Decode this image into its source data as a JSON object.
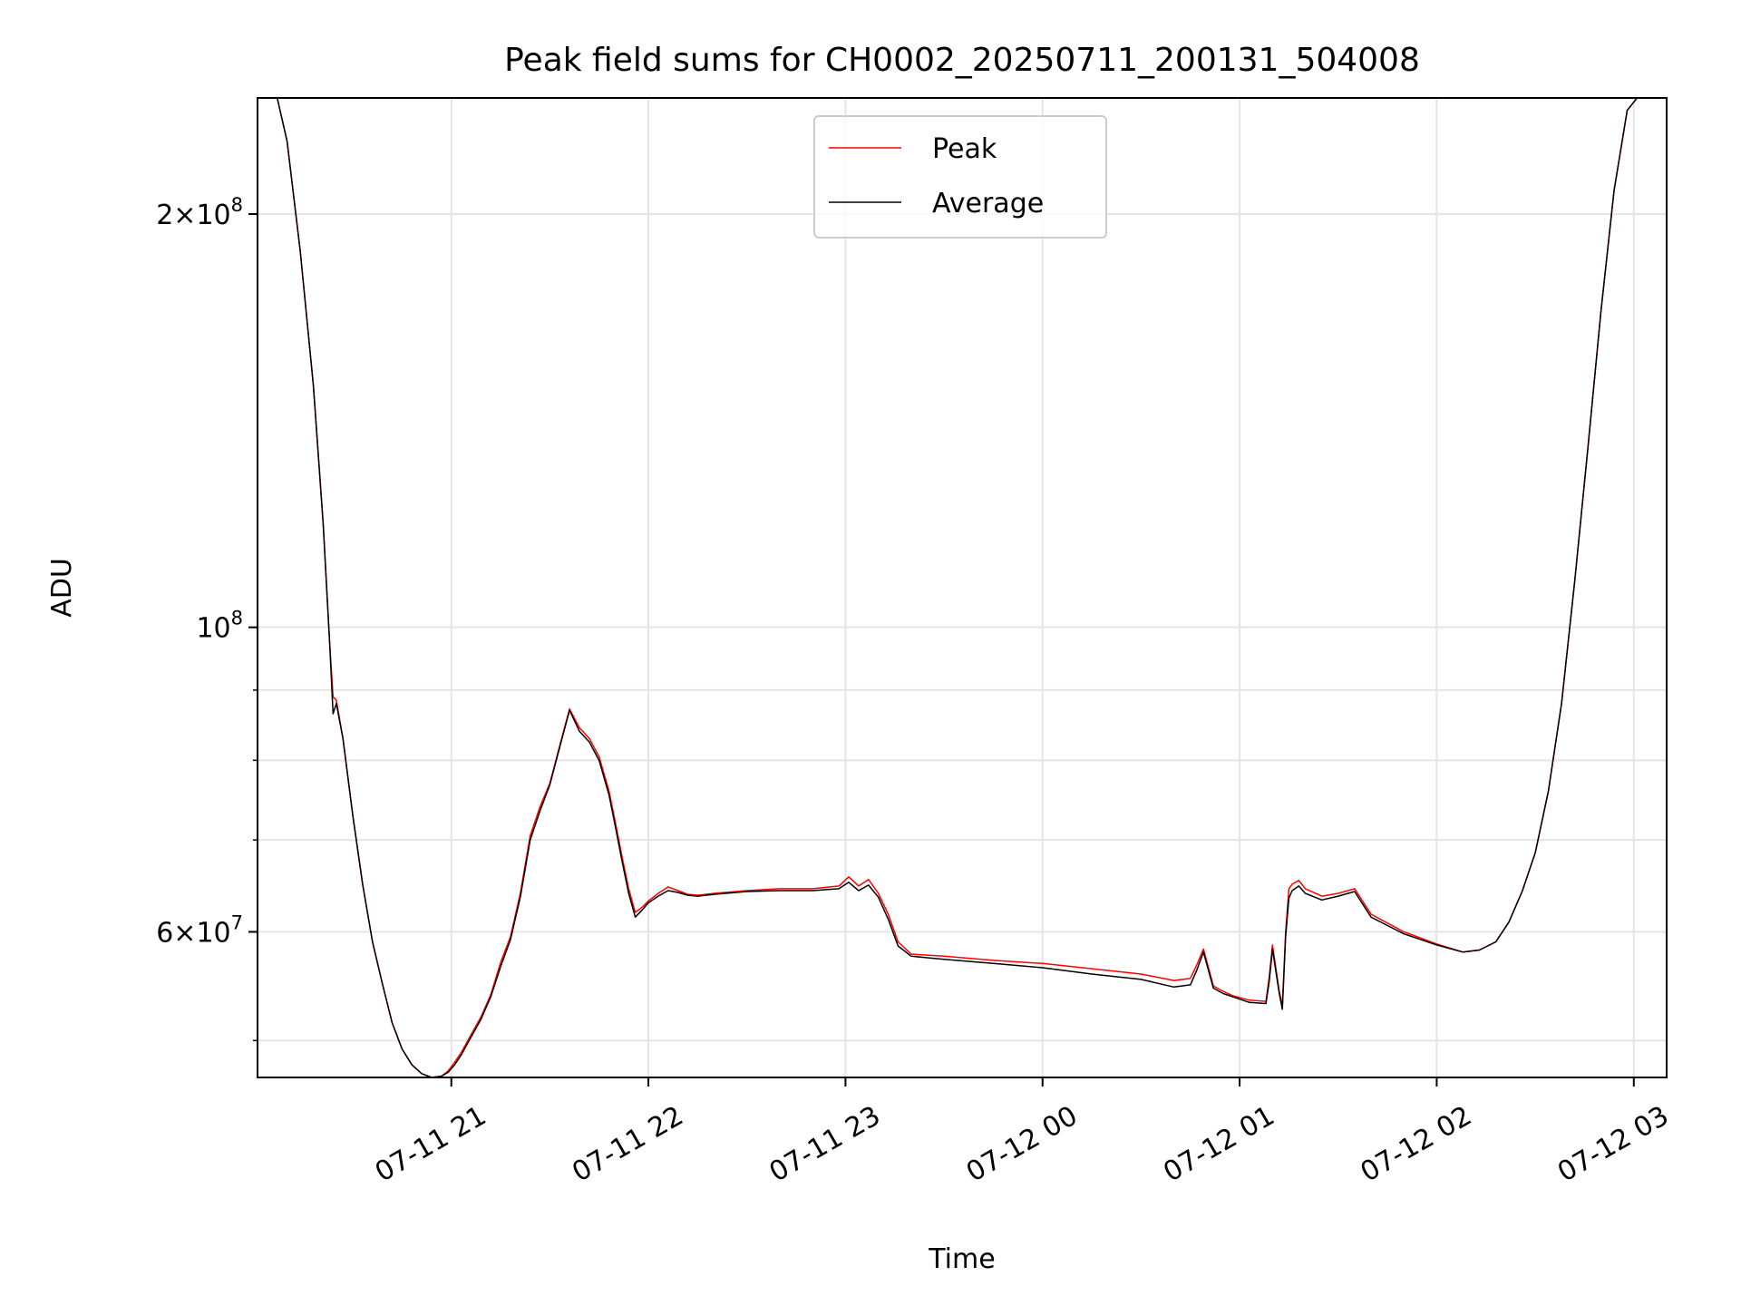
{
  "chart_data": {
    "type": "line",
    "title": "Peak field sums for CH0002_20250711_200131_504008",
    "xlabel": "Time",
    "ylabel": "ADU",
    "yscale": "log",
    "ylim": [
      47000000,
      243000000
    ],
    "xlim": [
      "2025-07-11 20:01",
      "2025-07-12 03:10"
    ],
    "grid": true,
    "legend_position": "upper center",
    "x_ticks": [
      {
        "value": "2025-07-11 21:00",
        "label": "07-11 21"
      },
      {
        "value": "2025-07-11 22:00",
        "label": "07-11 22"
      },
      {
        "value": "2025-07-11 23:00",
        "label": "07-11 23"
      },
      {
        "value": "2025-07-12 00:00",
        "label": "07-12 00"
      },
      {
        "value": "2025-07-12 01:00",
        "label": "07-12 01"
      },
      {
        "value": "2025-07-12 02:00",
        "label": "07-12 02"
      },
      {
        "value": "2025-07-12 03:00",
        "label": "07-12 03"
      }
    ],
    "y_ticks": [
      {
        "value": 200000000,
        "mantissa": "2",
        "exponent": "8"
      },
      {
        "value": 100000000,
        "mantissa": "",
        "exponent": "8"
      },
      {
        "value": 60000000,
        "mantissa": "6",
        "exponent": "7"
      }
    ],
    "y_minor_ticks": [
      50000000,
      70000000,
      80000000,
      90000000
    ],
    "series": [
      {
        "name": "Peak",
        "color": "#ff0000",
        "x": [
          "2025-07-11 20:07",
          "2025-07-11 20:10",
          "2025-07-11 20:14",
          "2025-07-11 20:18",
          "2025-07-11 20:21",
          "2025-07-11 20:23",
          "2025-07-11 20:24",
          "2025-07-11 20:25",
          "2025-07-11 20:27",
          "2025-07-11 20:30",
          "2025-07-11 20:33",
          "2025-07-11 20:36",
          "2025-07-11 20:39",
          "2025-07-11 20:42",
          "2025-07-11 20:45",
          "2025-07-11 20:48",
          "2025-07-11 20:51",
          "2025-07-11 20:54",
          "2025-07-11 20:57",
          "2025-07-11 20:59",
          "2025-07-11 21:01",
          "2025-07-11 21:03",
          "2025-07-11 21:06",
          "2025-07-11 21:09",
          "2025-07-11 21:12",
          "2025-07-11 21:15",
          "2025-07-11 21:18",
          "2025-07-11 21:21",
          "2025-07-11 21:24",
          "2025-07-11 21:27",
          "2025-07-11 21:30",
          "2025-07-11 21:33",
          "2025-07-11 21:36",
          "2025-07-11 21:39",
          "2025-07-11 21:42",
          "2025-07-11 21:45",
          "2025-07-11 21:48",
          "2025-07-11 21:50",
          "2025-07-11 21:52",
          "2025-07-11 21:54",
          "2025-07-11 21:56",
          "2025-07-11 21:58",
          "2025-07-11 22:00",
          "2025-07-11 22:03",
          "2025-07-11 22:06",
          "2025-07-11 22:09",
          "2025-07-11 22:12",
          "2025-07-11 22:15",
          "2025-07-11 22:20",
          "2025-07-11 22:30",
          "2025-07-11 22:40",
          "2025-07-11 22:50",
          "2025-07-11 22:58",
          "2025-07-11 23:01",
          "2025-07-11 23:04",
          "2025-07-11 23:07",
          "2025-07-11 23:10",
          "2025-07-11 23:13",
          "2025-07-11 23:16",
          "2025-07-11 23:20",
          "2025-07-11 23:30",
          "2025-07-11 23:45",
          "2025-07-12 00:00",
          "2025-07-12 00:15",
          "2025-07-12 00:30",
          "2025-07-12 00:40",
          "2025-07-12 00:45",
          "2025-07-12 00:47",
          "2025-07-12 00:49",
          "2025-07-12 00:52",
          "2025-07-12 00:55",
          "2025-07-12 00:58",
          "2025-07-12 01:03",
          "2025-07-12 01:08",
          "2025-07-12 01:09",
          "2025-07-12 01:10",
          "2025-07-12 01:12",
          "2025-07-12 01:13",
          "2025-07-12 01:14",
          "2025-07-12 01:15",
          "2025-07-12 01:16",
          "2025-07-12 01:18",
          "2025-07-12 01:20",
          "2025-07-12 01:25",
          "2025-07-12 01:30",
          "2025-07-12 01:35",
          "2025-07-12 01:40",
          "2025-07-12 01:50",
          "2025-07-12 02:00",
          "2025-07-12 02:08",
          "2025-07-12 02:13",
          "2025-07-12 02:18",
          "2025-07-12 02:22",
          "2025-07-12 02:26",
          "2025-07-12 02:30",
          "2025-07-12 02:34",
          "2025-07-12 02:38",
          "2025-07-12 02:42",
          "2025-07-12 02:46",
          "2025-07-12 02:50",
          "2025-07-12 02:54",
          "2025-07-12 02:58",
          "2025-07-12 03:01"
        ],
        "values": [
          243000000,
          226000000,
          188000000,
          150000000,
          119000000,
          97000000,
          89000000,
          88500000,
          83000000,
          73000000,
          65000000,
          59000000,
          55000000,
          51500000,
          49300000,
          48000000,
          47300000,
          47000000,
          47100000,
          47500000,
          48200000,
          49000000,
          50500000,
          52000000,
          54000000,
          57000000,
          59500000,
          64000000,
          70500000,
          74000000,
          77000000,
          82000000,
          87200000,
          84500000,
          83000000,
          80500000,
          76000000,
          72000000,
          68000000,
          64500000,
          62000000,
          62500000,
          63200000,
          64000000,
          64700000,
          64300000,
          63900000,
          63800000,
          64000000,
          64300000,
          64500000,
          64500000,
          64800000,
          65800000,
          64800000,
          65500000,
          64000000,
          61800000,
          59000000,
          57800000,
          57600000,
          57200000,
          56900000,
          56400000,
          55900000,
          55300000,
          55500000,
          56800000,
          58300000,
          54800000,
          54300000,
          53900000,
          53500000,
          53400000,
          55600000,
          58700000,
          54400000,
          53000000,
          60000000,
          64500000,
          65000000,
          65400000,
          64500000,
          63700000,
          64000000,
          64500000,
          61800000,
          60000000,
          58800000,
          58000000,
          58200000,
          59000000,
          61000000,
          64200000,
          68500000,
          76000000,
          88000000,
          108000000,
          135000000,
          170000000,
          208000000,
          238000000,
          243000000
        ]
      },
      {
        "name": "Average",
        "color": "#000000",
        "x": [
          "2025-07-11 20:07",
          "2025-07-11 20:10",
          "2025-07-11 20:14",
          "2025-07-11 20:18",
          "2025-07-11 20:21",
          "2025-07-11 20:23",
          "2025-07-11 20:24",
          "2025-07-11 20:25",
          "2025-07-11 20:27",
          "2025-07-11 20:30",
          "2025-07-11 20:33",
          "2025-07-11 20:36",
          "2025-07-11 20:39",
          "2025-07-11 20:42",
          "2025-07-11 20:45",
          "2025-07-11 20:48",
          "2025-07-11 20:51",
          "2025-07-11 20:54",
          "2025-07-11 20:57",
          "2025-07-11 20:59",
          "2025-07-11 21:01",
          "2025-07-11 21:03",
          "2025-07-11 21:06",
          "2025-07-11 21:09",
          "2025-07-11 21:12",
          "2025-07-11 21:15",
          "2025-07-11 21:18",
          "2025-07-11 21:21",
          "2025-07-11 21:24",
          "2025-07-11 21:27",
          "2025-07-11 21:30",
          "2025-07-11 21:33",
          "2025-07-11 21:36",
          "2025-07-11 21:39",
          "2025-07-11 21:42",
          "2025-07-11 21:45",
          "2025-07-11 21:48",
          "2025-07-11 21:50",
          "2025-07-11 21:52",
          "2025-07-11 21:54",
          "2025-07-11 21:56",
          "2025-07-11 21:58",
          "2025-07-11 22:00",
          "2025-07-11 22:03",
          "2025-07-11 22:06",
          "2025-07-11 22:09",
          "2025-07-11 22:12",
          "2025-07-11 22:15",
          "2025-07-11 22:20",
          "2025-07-11 22:30",
          "2025-07-11 22:40",
          "2025-07-11 22:50",
          "2025-07-11 22:58",
          "2025-07-11 23:01",
          "2025-07-11 23:04",
          "2025-07-11 23:07",
          "2025-07-11 23:10",
          "2025-07-11 23:13",
          "2025-07-11 23:16",
          "2025-07-11 23:20",
          "2025-07-11 23:30",
          "2025-07-11 23:45",
          "2025-07-12 00:00",
          "2025-07-12 00:15",
          "2025-07-12 00:30",
          "2025-07-12 00:40",
          "2025-07-12 00:45",
          "2025-07-12 00:47",
          "2025-07-12 00:49",
          "2025-07-12 00:52",
          "2025-07-12 00:55",
          "2025-07-12 00:58",
          "2025-07-12 01:03",
          "2025-07-12 01:08",
          "2025-07-12 01:09",
          "2025-07-12 01:10",
          "2025-07-12 01:12",
          "2025-07-12 01:13",
          "2025-07-12 01:14",
          "2025-07-12 01:15",
          "2025-07-12 01:16",
          "2025-07-12 01:18",
          "2025-07-12 01:20",
          "2025-07-12 01:25",
          "2025-07-12 01:30",
          "2025-07-12 01:35",
          "2025-07-12 01:40",
          "2025-07-12 01:50",
          "2025-07-12 02:00",
          "2025-07-12 02:08",
          "2025-07-12 02:13",
          "2025-07-12 02:18",
          "2025-07-12 02:22",
          "2025-07-12 02:26",
          "2025-07-12 02:30",
          "2025-07-12 02:34",
          "2025-07-12 02:38",
          "2025-07-12 02:42",
          "2025-07-12 02:46",
          "2025-07-12 02:50",
          "2025-07-12 02:54",
          "2025-07-12 02:58",
          "2025-07-12 03:01"
        ],
        "values": [
          243000000,
          226000000,
          188000000,
          150000000,
          119000000,
          97000000,
          86500000,
          88000000,
          83000000,
          73000000,
          65000000,
          59000000,
          55000000,
          51500000,
          49300000,
          48000000,
          47300000,
          47000000,
          47100000,
          47400000,
          48000000,
          48800000,
          50300000,
          51800000,
          53800000,
          56600000,
          59200000,
          63600000,
          70000000,
          73500000,
          76800000,
          81800000,
          87000000,
          84000000,
          82500000,
          80000000,
          75500000,
          71500000,
          67500000,
          64000000,
          61500000,
          62200000,
          63000000,
          63700000,
          64300000,
          64100000,
          63800000,
          63700000,
          63900000,
          64200000,
          64300000,
          64300000,
          64500000,
          65200000,
          64300000,
          64900000,
          63600000,
          61300000,
          58600000,
          57600000,
          57300000,
          56900000,
          56500000,
          55900000,
          55400000,
          54700000,
          54900000,
          56300000,
          58000000,
          54600000,
          54100000,
          53800000,
          53300000,
          53200000,
          55200000,
          58300000,
          54200000,
          52700000,
          59500000,
          63500000,
          64300000,
          64800000,
          64000000,
          63300000,
          63700000,
          64200000,
          61500000,
          59800000,
          58700000,
          58000000,
          58200000,
          59000000,
          61000000,
          64200000,
          68500000,
          76000000,
          88000000,
          108000000,
          135000000,
          170000000,
          208000000,
          238000000,
          243000000
        ]
      }
    ]
  }
}
